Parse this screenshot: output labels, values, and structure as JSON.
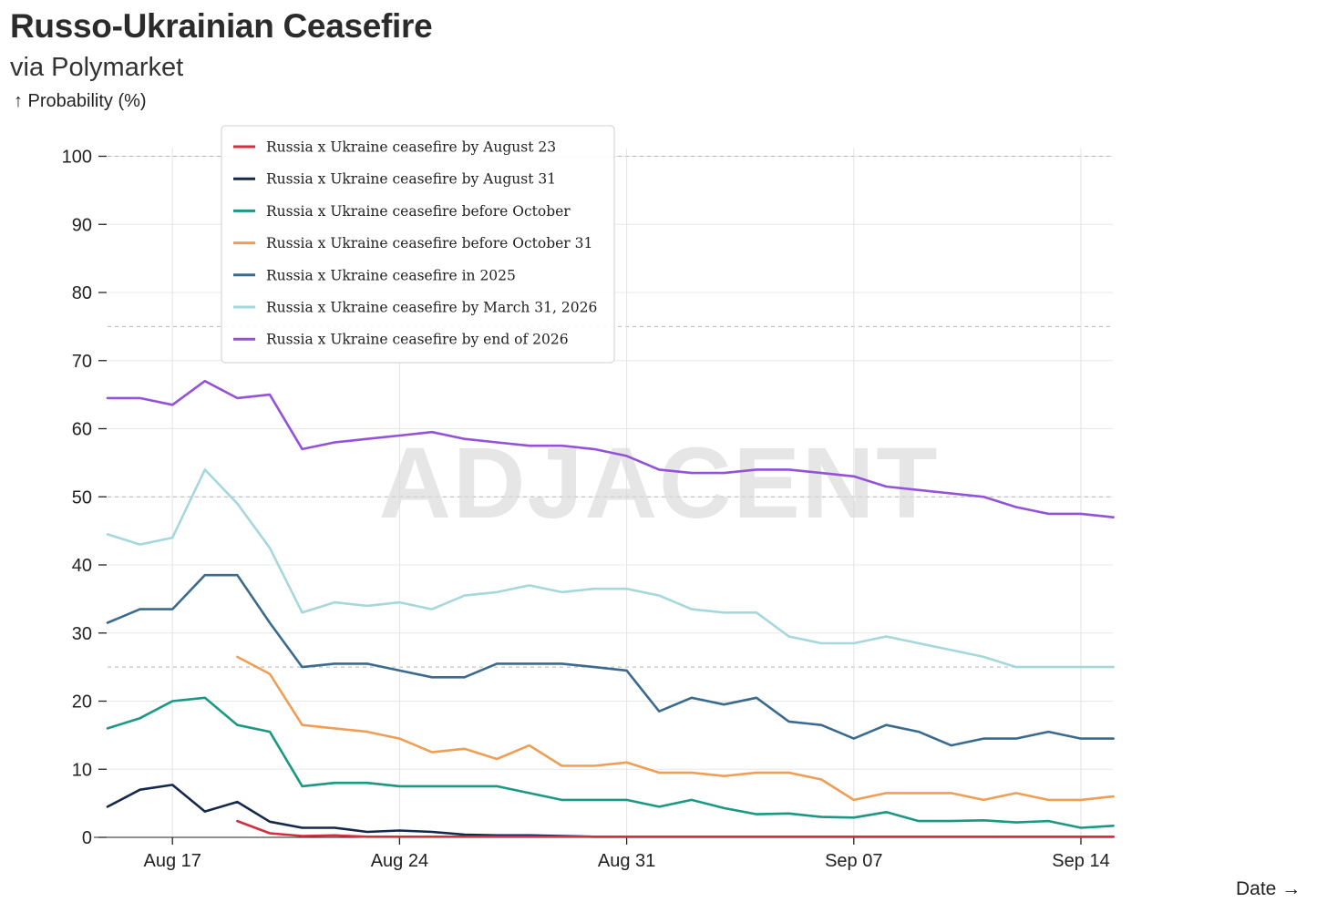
{
  "title": "Russo-Ukrainian Ceasefire",
  "subtitle": "via Polymarket",
  "ylabel": "↑ Probability (%)",
  "xlabel": "Date →",
  "watermark": "ADJACENT",
  "chart_data": {
    "type": "line",
    "ylim": [
      0,
      100
    ],
    "yticks": [
      0,
      10,
      20,
      30,
      40,
      50,
      60,
      70,
      80,
      90,
      100
    ],
    "xticks": [
      "Aug 17",
      "Aug 24",
      "Aug 31",
      "Sep 07",
      "Sep 14"
    ],
    "x_start": "Aug 15",
    "x": [
      "Aug 15",
      "Aug 16",
      "Aug 17",
      "Aug 18",
      "Aug 19",
      "Aug 20",
      "Aug 21",
      "Aug 22",
      "Aug 23",
      "Aug 24",
      "Aug 25",
      "Aug 26",
      "Aug 27",
      "Aug 28",
      "Aug 29",
      "Aug 30",
      "Aug 31",
      "Sep 01",
      "Sep 02",
      "Sep 03",
      "Sep 04",
      "Sep 05",
      "Sep 06",
      "Sep 07",
      "Sep 08",
      "Sep 09",
      "Sep 10",
      "Sep 11",
      "Sep 12",
      "Sep 13",
      "Sep 14",
      "Sep 15"
    ],
    "dashed_reference_lines": [
      25,
      50,
      75,
      100
    ],
    "grid": true,
    "legend_position": "top-left",
    "series": [
      {
        "name": "Russia x Ukraine ceasefire by August 23",
        "color": "#d62d3f",
        "values": [
          null,
          null,
          null,
          null,
          2.4,
          0.6,
          0.2,
          0.3,
          0.1,
          0.1,
          0.1,
          0.1,
          0.1,
          0.1,
          0.1,
          0.1,
          0.1,
          0.1,
          0.1,
          0.1,
          0.1,
          0.1,
          0.1,
          0.1,
          0.1,
          0.1,
          0.1,
          0.1,
          0.1,
          0.1,
          0.1,
          0.1
        ]
      },
      {
        "name": "Russia x Ukraine ceasefire by August 31",
        "color": "#14284b",
        "values": [
          4.5,
          7.0,
          7.7,
          3.8,
          5.2,
          2.3,
          1.4,
          1.4,
          0.8,
          1.0,
          0.8,
          0.4,
          0.3,
          0.3,
          0.2,
          0.1,
          0.1,
          0.1,
          0.1,
          0.1,
          0.1,
          0.1,
          0.1,
          0.1,
          0.1,
          0.1,
          0.1,
          0.1,
          0.1,
          0.1,
          0.1,
          0.1
        ]
      },
      {
        "name": "Russia x Ukraine ceasefire before October",
        "color": "#1b9883",
        "values": [
          16.0,
          17.5,
          20.0,
          20.5,
          16.5,
          15.5,
          7.5,
          8.0,
          8.0,
          7.5,
          7.5,
          7.5,
          7.5,
          6.5,
          5.5,
          5.5,
          5.5,
          4.5,
          5.5,
          4.3,
          3.4,
          3.5,
          3.0,
          2.9,
          3.7,
          2.4,
          2.4,
          2.5,
          2.2,
          2.4,
          1.4,
          1.7
        ]
      },
      {
        "name": "Russia x Ukraine ceasefire before October 31",
        "color": "#ef9e55",
        "values": [
          null,
          null,
          null,
          null,
          26.5,
          24.0,
          16.5,
          16.0,
          15.5,
          14.5,
          12.5,
          13.0,
          11.5,
          13.5,
          10.5,
          10.5,
          11.0,
          9.5,
          9.5,
          9.0,
          9.5,
          9.5,
          8.5,
          5.5,
          6.5,
          6.5,
          6.5,
          5.5,
          6.5,
          5.5,
          5.5,
          6.0
        ]
      },
      {
        "name": "Russia x Ukraine ceasefire in 2025",
        "color": "#3a6b8e",
        "values": [
          31.5,
          33.5,
          33.5,
          38.5,
          38.5,
          31.5,
          25.0,
          25.5,
          25.5,
          24.5,
          23.5,
          23.5,
          25.5,
          25.5,
          25.5,
          25.0,
          24.5,
          18.5,
          20.5,
          19.5,
          20.5,
          17.0,
          16.5,
          14.5,
          16.5,
          15.5,
          13.5,
          14.5,
          14.5,
          15.5,
          14.5,
          14.5
        ]
      },
      {
        "name": "Russia x Ukraine ceasefire by March 31, 2026",
        "color": "#a5d8dd",
        "values": [
          44.5,
          43.0,
          44.0,
          54.0,
          49.0,
          42.5,
          33.0,
          34.5,
          34.0,
          34.5,
          33.5,
          35.5,
          36.0,
          37.0,
          36.0,
          36.5,
          36.5,
          35.5,
          33.5,
          33.0,
          33.0,
          29.5,
          28.5,
          28.5,
          29.5,
          28.5,
          27.5,
          26.5,
          25.0,
          25.0,
          25.0,
          25.0
        ]
      },
      {
        "name": "Russia x Ukraine ceasefire by end of 2026",
        "color": "#9451d9",
        "values": [
          64.5,
          64.5,
          63.5,
          67.0,
          64.5,
          65.0,
          57.0,
          58.0,
          58.5,
          59.0,
          59.5,
          58.5,
          58.0,
          57.5,
          57.5,
          57.0,
          56.0,
          54.0,
          53.5,
          53.5,
          54.0,
          54.0,
          53.5,
          53.0,
          51.5,
          51.0,
          50.5,
          50.0,
          48.5,
          47.5,
          47.5,
          47.0
        ]
      }
    ]
  }
}
